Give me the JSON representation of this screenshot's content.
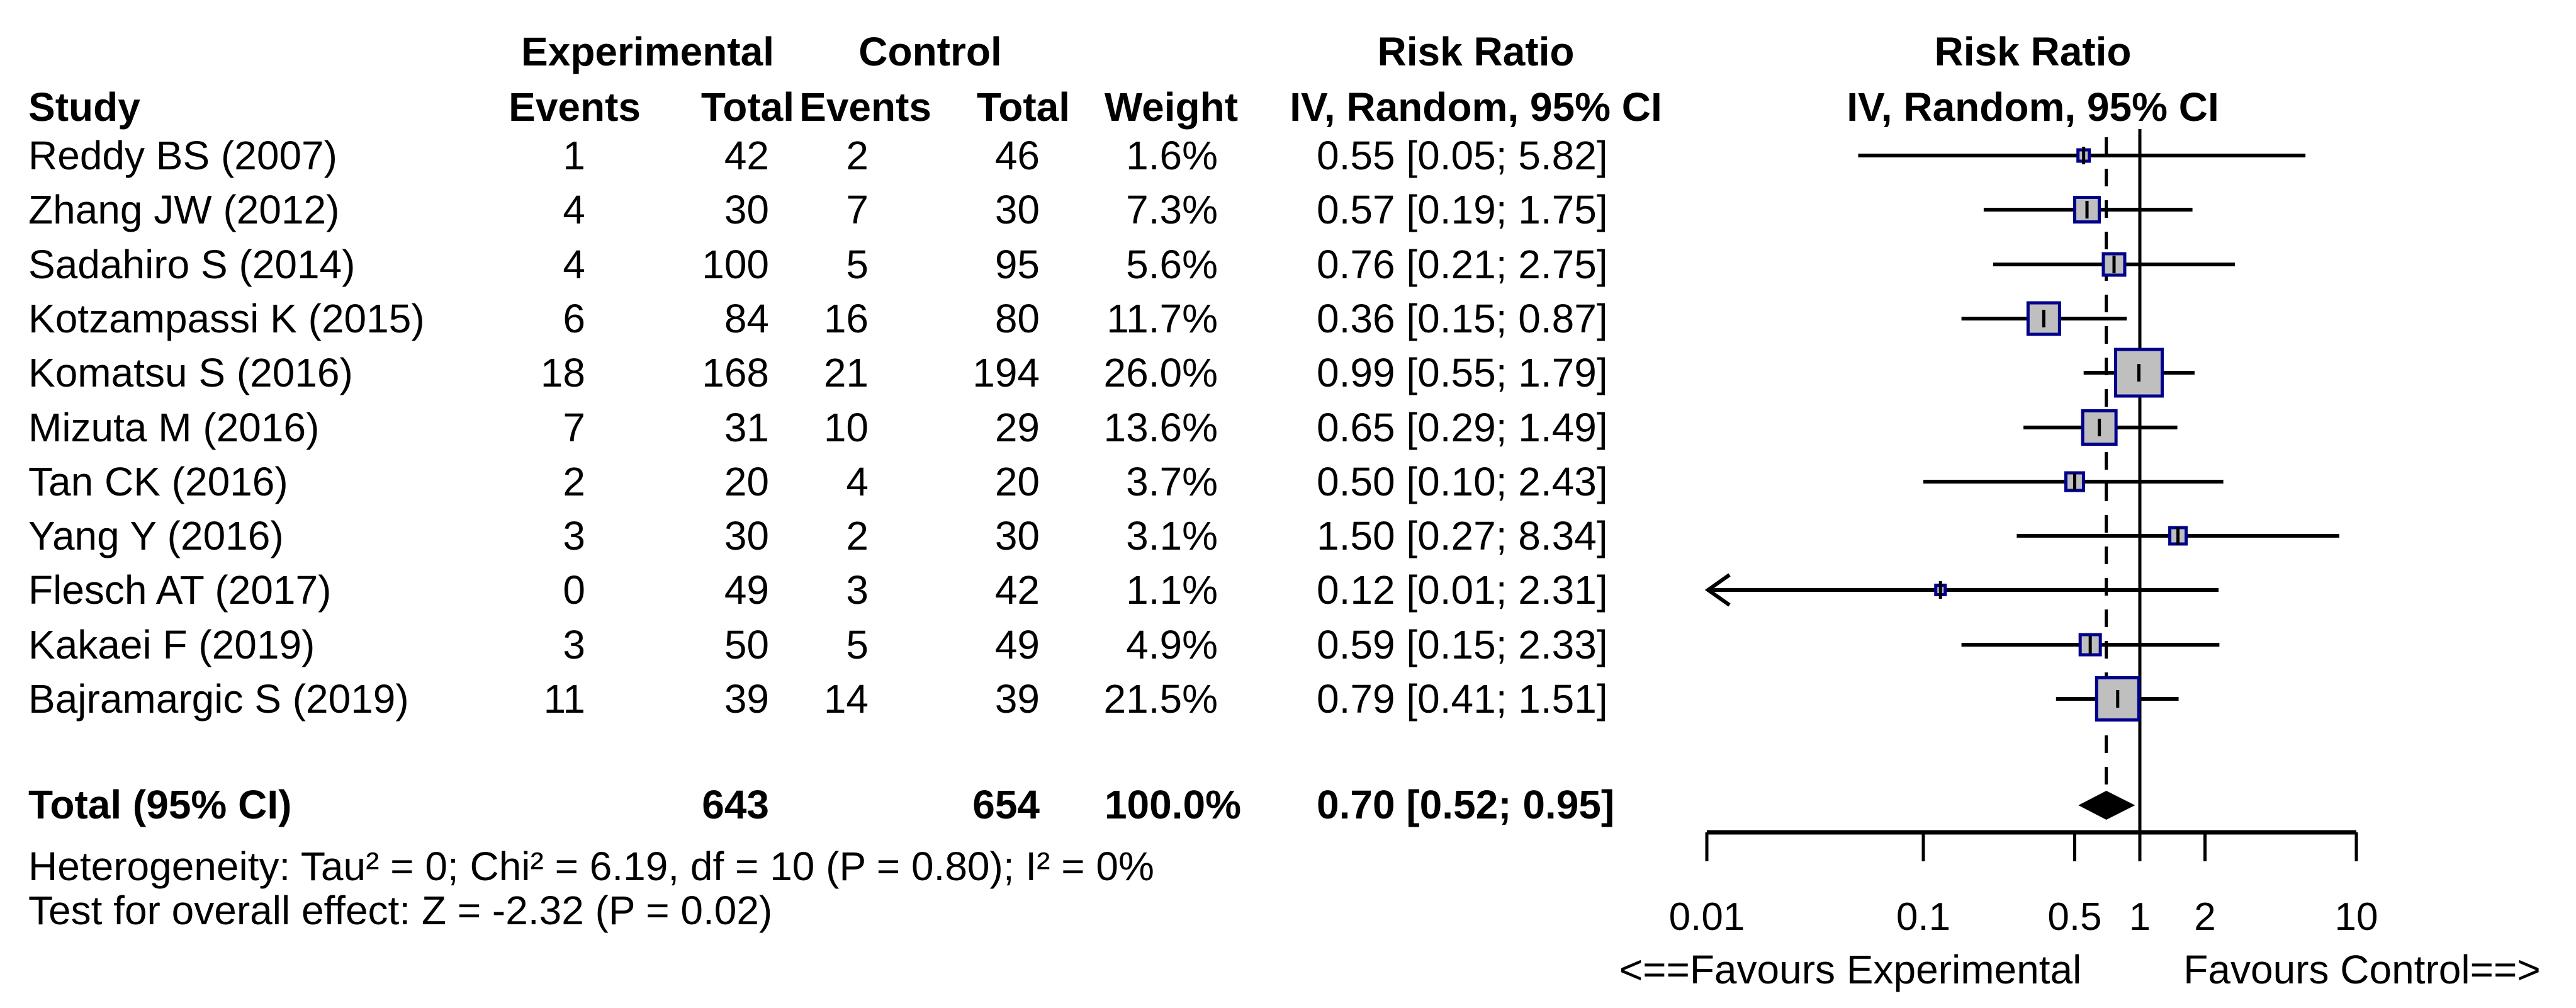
{
  "table": {
    "headers": {
      "group_experimental": "Experimental",
      "group_control": "Control",
      "risk_ratio_left": "Risk Ratio",
      "risk_ratio_right": "Risk Ratio",
      "study": "Study",
      "events_exp": "Events",
      "total_exp": "Total",
      "events_ctrl": "Events",
      "total_ctrl": "Total",
      "weight": "Weight",
      "iv_random_left": "IV, Random, 95% CI",
      "iv_random_right": "IV, Random, 95% CI"
    },
    "rows": [
      {
        "study": "Reddy BS (2007)",
        "events_exp": "1",
        "total_exp": "42",
        "events_ctrl": "2",
        "total_ctrl": "46",
        "weight": "1.6%",
        "rr_ci": "0.55 [0.05; 5.82]"
      },
      {
        "study": "Zhang JW (2012)",
        "events_exp": "4",
        "total_exp": "30",
        "events_ctrl": "7",
        "total_ctrl": "30",
        "weight": "7.3%",
        "rr_ci": "0.57 [0.19; 1.75]"
      },
      {
        "study": "Sadahiro S (2014)",
        "events_exp": "4",
        "total_exp": "100",
        "events_ctrl": "5",
        "total_ctrl": "95",
        "weight": "5.6%",
        "rr_ci": "0.76 [0.21; 2.75]"
      },
      {
        "study": "Kotzampassi K (2015)",
        "events_exp": "6",
        "total_exp": "84",
        "events_ctrl": "16",
        "total_ctrl": "80",
        "weight": "11.7%",
        "rr_ci": "0.36 [0.15; 0.87]"
      },
      {
        "study": "Komatsu S (2016)",
        "events_exp": "18",
        "total_exp": "168",
        "events_ctrl": "21",
        "total_ctrl": "194",
        "weight": "26.0%",
        "rr_ci": "0.99 [0.55; 1.79]"
      },
      {
        "study": "Mizuta M (2016)",
        "events_exp": "7",
        "total_exp": "31",
        "events_ctrl": "10",
        "total_ctrl": "29",
        "weight": "13.6%",
        "rr_ci": "0.65 [0.29; 1.49]"
      },
      {
        "study": "Tan CK (2016)",
        "events_exp": "2",
        "total_exp": "20",
        "events_ctrl": "4",
        "total_ctrl": "20",
        "weight": "3.7%",
        "rr_ci": "0.50 [0.10; 2.43]"
      },
      {
        "study": "Yang Y (2016)",
        "events_exp": "3",
        "total_exp": "30",
        "events_ctrl": "2",
        "total_ctrl": "30",
        "weight": "3.1%",
        "rr_ci": "1.50 [0.27; 8.34]"
      },
      {
        "study": "Flesch AT (2017)",
        "events_exp": "0",
        "total_exp": "49",
        "events_ctrl": "3",
        "total_ctrl": "42",
        "weight": "1.1%",
        "rr_ci": "0.12 [0.01; 2.31]"
      },
      {
        "study": "Kakaei F (2019)",
        "events_exp": "3",
        "total_exp": "50",
        "events_ctrl": "5",
        "total_ctrl": "49",
        "weight": "4.9%",
        "rr_ci": "0.59 [0.15; 2.33]"
      },
      {
        "study": "Bajramargic S (2019)",
        "events_exp": "11",
        "total_exp": "39",
        "events_ctrl": "14",
        "total_ctrl": "39",
        "weight": "21.5%",
        "rr_ci": "0.79 [0.41; 1.51]"
      }
    ],
    "total_row": {
      "label": "Total (95% CI)",
      "total_exp": "643",
      "total_ctrl": "654",
      "weight": "100.0%",
      "rr_ci": "0.70 [0.52; 0.95]"
    },
    "heterogeneity": "Heterogeneity: Tau² = 0; Chi² = 6.19, df = 10 (P = 0.80); I² = 0%",
    "overall_effect": "Test for overall effect: Z = -2.32 (P = 0.02)"
  },
  "footer": {
    "favours_left": "<==Favours Experimental",
    "favours_right": "Favours Control==>"
  },
  "chart_data": {
    "type": "forest",
    "effect_measure": "Risk Ratio",
    "model": "IV, Random, 95% CI",
    "x_scale": "log10",
    "x_range": [
      0.01,
      10
    ],
    "x_ticks": [
      0.01,
      0.1,
      0.5,
      1,
      2,
      10
    ],
    "x_tick_labels": [
      "0.01",
      "0.1",
      "0.5",
      "1",
      "2",
      "10"
    ],
    "reference_line": 1,
    "pooled_dashed_line": 0.7,
    "studies": [
      {
        "label": "Reddy BS (2007)",
        "rr": 0.55,
        "ci_low": 0.05,
        "ci_high": 5.82,
        "weight_pct": 1.6,
        "arrow_left": false
      },
      {
        "label": "Zhang JW (2012)",
        "rr": 0.57,
        "ci_low": 0.19,
        "ci_high": 1.75,
        "weight_pct": 7.3,
        "arrow_left": false
      },
      {
        "label": "Sadahiro S (2014)",
        "rr": 0.76,
        "ci_low": 0.21,
        "ci_high": 2.75,
        "weight_pct": 5.6,
        "arrow_left": false
      },
      {
        "label": "Kotzampassi K (2015)",
        "rr": 0.36,
        "ci_low": 0.15,
        "ci_high": 0.87,
        "weight_pct": 11.7,
        "arrow_left": false
      },
      {
        "label": "Komatsu S (2016)",
        "rr": 0.99,
        "ci_low": 0.55,
        "ci_high": 1.79,
        "weight_pct": 26.0,
        "arrow_left": false
      },
      {
        "label": "Mizuta M (2016)",
        "rr": 0.65,
        "ci_low": 0.29,
        "ci_high": 1.49,
        "weight_pct": 13.6,
        "arrow_left": false
      },
      {
        "label": "Tan CK (2016)",
        "rr": 0.5,
        "ci_low": 0.1,
        "ci_high": 2.43,
        "weight_pct": 3.7,
        "arrow_left": false
      },
      {
        "label": "Yang Y (2016)",
        "rr": 1.5,
        "ci_low": 0.27,
        "ci_high": 8.34,
        "weight_pct": 3.1,
        "arrow_left": false
      },
      {
        "label": "Flesch AT (2017)",
        "rr": 0.12,
        "ci_low": 0.01,
        "ci_high": 2.31,
        "weight_pct": 1.1,
        "arrow_left": true
      },
      {
        "label": "Kakaei F (2019)",
        "rr": 0.59,
        "ci_low": 0.15,
        "ci_high": 2.33,
        "weight_pct": 4.9,
        "arrow_left": false
      },
      {
        "label": "Bajramargic S (2019)",
        "rr": 0.79,
        "ci_low": 0.41,
        "ci_high": 1.51,
        "weight_pct": 21.5,
        "arrow_left": false
      }
    ],
    "pooled": {
      "rr": 0.7,
      "ci_low": 0.52,
      "ci_high": 0.95
    },
    "marker_fill": "#bfbfbf",
    "marker_border": "#00008b",
    "line_color": "#000000",
    "diamond_color": "#000000",
    "legend_position": "none",
    "grid": false
  }
}
